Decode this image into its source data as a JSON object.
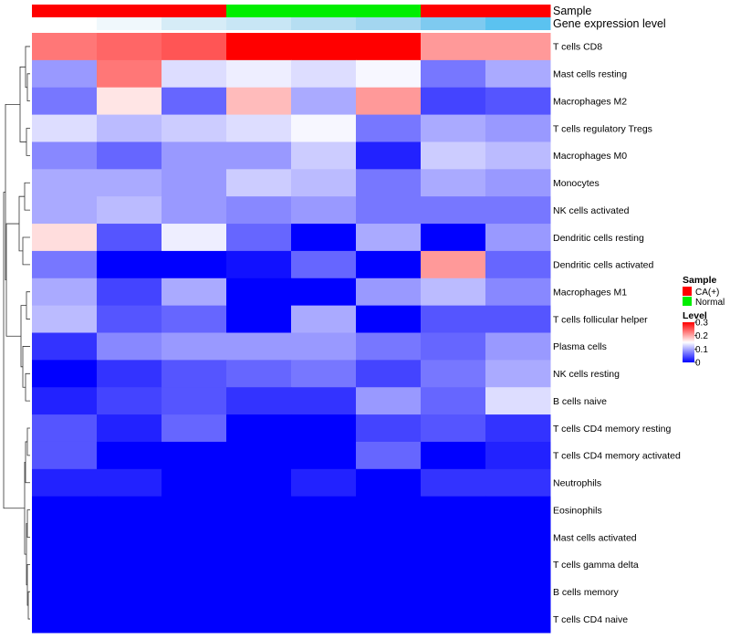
{
  "chart_data": {
    "type": "heatmap",
    "annotations": [
      {
        "name": "Sample",
        "values": [
          "CA(+)",
          "CA(+)",
          "CA(+)",
          "Normal",
          "Normal",
          "Normal",
          "CA(+)",
          "CA(+)"
        ]
      },
      {
        "name": "Gene expression level",
        "values": [
          "#ffffff",
          "#f0f8fc",
          "#d6ecf7",
          "#c8e6f5",
          "#b6def2",
          "#a3d6f0",
          "#7ecaf0",
          "#5bc2f0"
        ]
      }
    ],
    "rows": [
      "T cells CD8",
      "Mast cells resting",
      "Macrophages M2",
      "T cells regulatory  Tregs",
      "Macrophages M0",
      "Monocytes",
      "NK cells activated",
      "Dendritic cells resting",
      "Dendritic cells activated",
      "Macrophages M1",
      "T cells follicular helper",
      "Plasma cells",
      "NK cells resting",
      "B cells naive",
      "T cells CD4 memory resting",
      "T cells CD4 memory activated",
      "Neutrophils",
      "Eosinophils",
      "Mast cells activated",
      "T cells gamma delta",
      "B cells memory",
      "T cells CD4 naive"
    ],
    "values": [
      [
        0.23,
        0.24,
        0.25,
        0.3,
        0.3,
        0.3,
        0.21,
        0.21
      ],
      [
        0.09,
        0.23,
        0.13,
        0.14,
        0.13,
        0.145,
        0.07,
        0.1
      ],
      [
        0.07,
        0.165,
        0.06,
        0.19,
        0.1,
        0.21,
        0.04,
        0.05
      ],
      [
        0.13,
        0.11,
        0.12,
        0.13,
        0.145,
        0.07,
        0.1,
        0.09
      ],
      [
        0.08,
        0.06,
        0.09,
        0.09,
        0.12,
        0.02,
        0.12,
        0.11
      ],
      [
        0.1,
        0.1,
        0.09,
        0.12,
        0.11,
        0.07,
        0.1,
        0.09
      ],
      [
        0.1,
        0.11,
        0.09,
        0.08,
        0.09,
        0.07,
        0.07,
        0.07
      ],
      [
        0.17,
        0.05,
        0.14,
        0.06,
        0.0,
        0.1,
        0.0,
        0.09
      ],
      [
        0.07,
        0.0,
        0.0,
        0.01,
        0.06,
        0.0,
        0.21,
        0.06
      ],
      [
        0.1,
        0.04,
        0.1,
        0.0,
        0.0,
        0.09,
        0.11,
        0.08
      ],
      [
        0.11,
        0.05,
        0.06,
        0.0,
        0.1,
        0.0,
        0.05,
        0.05
      ],
      [
        0.03,
        0.08,
        0.09,
        0.09,
        0.09,
        0.07,
        0.06,
        0.09
      ],
      [
        0.0,
        0.03,
        0.05,
        0.06,
        0.07,
        0.04,
        0.07,
        0.1
      ],
      [
        0.02,
        0.04,
        0.05,
        0.03,
        0.03,
        0.09,
        0.06,
        0.13
      ],
      [
        0.05,
        0.02,
        0.06,
        0.0,
        0.0,
        0.04,
        0.05,
        0.03
      ],
      [
        0.05,
        0.0,
        0.0,
        0.0,
        0.0,
        0.06,
        0.0,
        0.02
      ],
      [
        0.02,
        0.02,
        0.0,
        0.0,
        0.02,
        0.0,
        0.03,
        0.03
      ],
      [
        0.0,
        0.0,
        0.0,
        0.0,
        0.0,
        0.0,
        0.0,
        0.0
      ],
      [
        0.0,
        0.0,
        0.0,
        0.0,
        0.0,
        0.0,
        0.0,
        0.0
      ],
      [
        0.0,
        0.0,
        0.0,
        0.0,
        0.0,
        0.0,
        0.0,
        0.0
      ],
      [
        0.0,
        0.0,
        0.0,
        0.0,
        0.0,
        0.0,
        0.0,
        0.0
      ],
      [
        0.0,
        0.0,
        0.0,
        0.0,
        0.0,
        0.0,
        0.0,
        0.0
      ]
    ],
    "legend": {
      "sample_title": "Sample",
      "sample_items": [
        {
          "label": "CA(+)",
          "color": "#ff0000"
        },
        {
          "label": "Normal",
          "color": "#00ee00"
        }
      ],
      "level_title": "Level",
      "level_ticks": [
        "0.3",
        "0.2",
        "0.1",
        "0"
      ],
      "level_range": [
        0,
        0.3
      ],
      "colors": {
        "low": "#0000ff",
        "mid": "#ffffff",
        "high": "#ff0000"
      }
    }
  }
}
